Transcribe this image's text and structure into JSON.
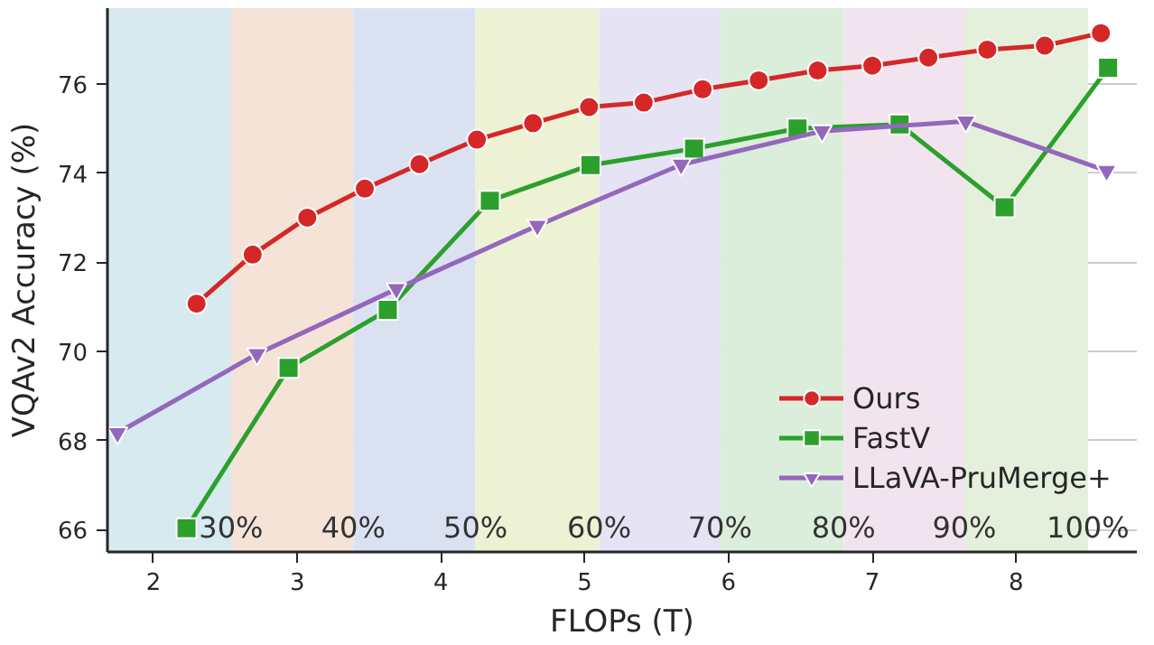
{
  "chart_data": {
    "type": "line",
    "xlabel": "FLOPs (T)",
    "ylabel": "VQAv2 Accuracy (%)",
    "xlim": [
      1.68,
      8.84
    ],
    "ylim": [
      65.5,
      77.7
    ],
    "xticks": [
      2,
      3,
      4,
      5,
      6,
      7,
      8
    ],
    "yticks": [
      66,
      68,
      70,
      72,
      74,
      76
    ],
    "grid": "y",
    "legend": "bottom right",
    "line_style": "solid",
    "series": [
      {
        "name": "Ours",
        "color": "#d62728",
        "marker": "circle",
        "x": [
          2.3,
          2.69,
          3.07,
          3.47,
          3.85,
          4.25,
          4.64,
          5.03,
          5.41,
          5.82,
          6.21,
          6.62,
          7.0,
          7.39,
          7.8,
          8.2,
          8.59
        ],
        "values": [
          71.07,
          72.17,
          73.0,
          73.65,
          74.2,
          74.75,
          75.12,
          75.48,
          75.58,
          75.88,
          76.08,
          76.3,
          76.41,
          76.59,
          76.77,
          76.86,
          77.14
        ]
      },
      {
        "name": "FastV",
        "color": "#2ca02c",
        "marker": "square",
        "x": [
          2.23,
          2.94,
          3.63,
          4.34,
          5.04,
          5.76,
          6.48,
          7.19,
          7.92,
          8.64
        ],
        "values": [
          66.03,
          69.63,
          70.93,
          73.38,
          74.18,
          74.55,
          75.0,
          75.09,
          73.23,
          76.36
        ]
      },
      {
        "name": "LLaVA-PruMerge+",
        "color": "#9467bd",
        "marker": "triangle",
        "x": [
          1.75,
          2.72,
          3.69,
          4.67,
          5.67,
          6.65,
          7.65,
          8.63
        ],
        "values": [
          68.17,
          69.94,
          71.4,
          72.82,
          74.19,
          74.94,
          75.16,
          74.05
        ]
      }
    ],
    "bands": [
      {
        "axis": "x",
        "from": 1.68,
        "to": 2.54,
        "label": "30%",
        "color": "#d6eaf0"
      },
      {
        "axis": "x",
        "from": 2.54,
        "to": 3.39,
        "label": "40%",
        "color": "#f5e3d8"
      },
      {
        "axis": "x",
        "from": 3.39,
        "to": 4.24,
        "label": "50%",
        "color": "#dae2f2"
      },
      {
        "axis": "x",
        "from": 4.24,
        "to": 5.1,
        "label": "60%",
        "color": "#eef2d4"
      },
      {
        "axis": "x",
        "from": 5.1,
        "to": 5.94,
        "label": "70%",
        "color": "#e6e3f4"
      },
      {
        "axis": "x",
        "from": 5.94,
        "to": 6.8,
        "label": "80%",
        "color": "#dbeddb"
      },
      {
        "axis": "x",
        "from": 6.8,
        "to": 7.64,
        "label": "90%",
        "color": "#f2e4ee"
      },
      {
        "axis": "x",
        "from": 7.64,
        "to": 8.5,
        "label": "100%",
        "color": "#e4f0db"
      }
    ]
  }
}
